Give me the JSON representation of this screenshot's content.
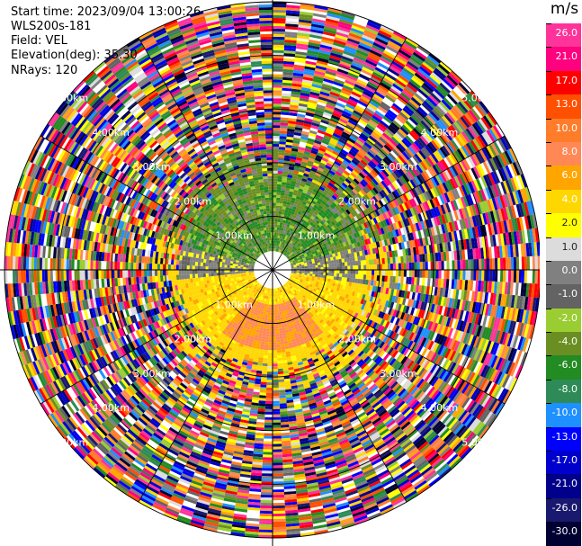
{
  "header": {
    "start_time": "Start time: 2023/09/04 13:00:26",
    "instrument": "WLS200s-181",
    "field": "Field: VEL",
    "elevation": "Elevation(deg): 35.30",
    "nrays": "NRays: 120"
  },
  "range_rings": [
    {
      "label": "1.00km"
    },
    {
      "label": "2.00km"
    },
    {
      "label": "3.00km"
    },
    {
      "label": "4.00km"
    },
    {
      "label": "5.00km"
    }
  ],
  "colorbar": {
    "unit": "m/s",
    "levels": [
      {
        "label": "26.0",
        "color": "#ff3399"
      },
      {
        "label": "21.0",
        "color": "#ff007f"
      },
      {
        "label": "17.0",
        "color": "#ff0000"
      },
      {
        "label": "13.0",
        "color": "#ff4f00"
      },
      {
        "label": "10.0",
        "color": "#ff7c2a"
      },
      {
        "label": "8.0",
        "color": "#ff8855"
      },
      {
        "label": "6.0",
        "color": "#ffa500"
      },
      {
        "label": "4.0",
        "color": "#ffd700"
      },
      {
        "label": "2.0",
        "color": "#ffff00"
      },
      {
        "label": "1.0",
        "color": "#dcdcdc"
      },
      {
        "label": "0.0",
        "color": "#808080"
      },
      {
        "label": "-1.0",
        "color": "#636363"
      },
      {
        "label": "-2.0",
        "color": "#9acd32"
      },
      {
        "label": "-4.0",
        "color": "#6b8e23"
      },
      {
        "label": "-6.0",
        "color": "#228b22"
      },
      {
        "label": "-8.0",
        "color": "#2e8b57"
      },
      {
        "label": "-10.0",
        "color": "#1e90ff"
      },
      {
        "label": "-13.0",
        "color": "#0000ff"
      },
      {
        "label": "-17.0",
        "color": "#0000cd"
      },
      {
        "label": "-21.0",
        "color": "#00008b"
      },
      {
        "label": "-26.0",
        "color": "#191970"
      },
      {
        "label": "-30.0",
        "color": "#000033"
      }
    ]
  }
}
